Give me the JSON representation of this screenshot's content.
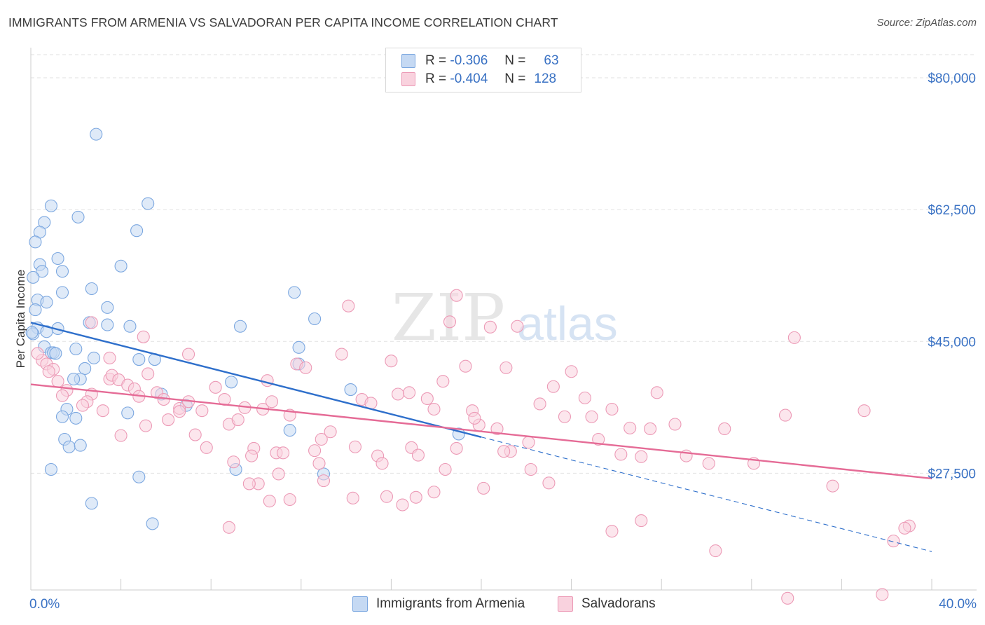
{
  "header": {
    "title": "IMMIGRANTS FROM ARMENIA VS SALVADORAN PER CAPITA INCOME CORRELATION CHART",
    "source": "Source: ZipAtlas.com"
  },
  "watermark": {
    "zip": "ZIP",
    "atlas": "atlas"
  },
  "legend": {
    "rows": [
      {
        "r_label": "R =",
        "r_value": "-0.306",
        "n_label": "N =",
        "n_value": "63"
      },
      {
        "r_label": "R =",
        "r_value": "-0.404",
        "n_label": "N =",
        "n_value": "128"
      }
    ]
  },
  "chart_data": {
    "type": "scatter",
    "ylabel": "Per Capita Income",
    "xlim": [
      0,
      40
    ],
    "ylim": [
      12000,
      84000
    ],
    "x_tick_labels": {
      "left": "0.0%",
      "right": "40.0%"
    },
    "y_ticks": [
      {
        "value": 80000,
        "label": "$80,000"
      },
      {
        "value": 62500,
        "label": "$62,500"
      },
      {
        "value": 45000,
        "label": "$45,000"
      },
      {
        "value": 27500,
        "label": "$27,500"
      }
    ],
    "grid": "horizontal-dashed",
    "series": [
      {
        "name": "Immigrants from Armenia",
        "color": "#7ba7e0",
        "fill": "#c5d9f3",
        "line_color": "#2e6fcb",
        "trend": {
          "x0": 0.0,
          "y0": 47500,
          "x1": 20.0,
          "y1": 32300,
          "dash_to_x": 40.0,
          "dash_to_y": 17100
        },
        "points": [
          [
            2.9,
            72500
          ],
          [
            0.9,
            63000
          ],
          [
            0.6,
            60800
          ],
          [
            2.1,
            61500
          ],
          [
            5.2,
            63300
          ],
          [
            4.7,
            59700
          ],
          [
            0.4,
            59500
          ],
          [
            0.2,
            58200
          ],
          [
            1.2,
            56000
          ],
          [
            0.4,
            55200
          ],
          [
            0.5,
            54300
          ],
          [
            1.4,
            54300
          ],
          [
            4.0,
            55000
          ],
          [
            0.1,
            53500
          ],
          [
            2.7,
            52000
          ],
          [
            1.4,
            51500
          ],
          [
            11.7,
            51500
          ],
          [
            0.3,
            50500
          ],
          [
            0.7,
            50200
          ],
          [
            3.4,
            49500
          ],
          [
            0.2,
            49200
          ],
          [
            12.6,
            48000
          ],
          [
            2.6,
            47500
          ],
          [
            3.4,
            47200
          ],
          [
            4.4,
            47000
          ],
          [
            9.3,
            47000
          ],
          [
            0.3,
            46800
          ],
          [
            1.2,
            46700
          ],
          [
            0.1,
            46000
          ],
          [
            0.7,
            46300
          ],
          [
            0.6,
            44300
          ],
          [
            2.0,
            44000
          ],
          [
            11.9,
            44200
          ],
          [
            0.9,
            43500
          ],
          [
            1.0,
            43500
          ],
          [
            1.1,
            43400
          ],
          [
            2.8,
            42800
          ],
          [
            4.8,
            42600
          ],
          [
            5.5,
            42600
          ],
          [
            11.9,
            42000
          ],
          [
            2.4,
            41400
          ],
          [
            2.2,
            40000
          ],
          [
            1.9,
            40000
          ],
          [
            8.9,
            39600
          ],
          [
            14.2,
            38600
          ],
          [
            5.8,
            38000
          ],
          [
            6.9,
            36500
          ],
          [
            1.6,
            36000
          ],
          [
            4.3,
            35500
          ],
          [
            1.4,
            35000
          ],
          [
            2.0,
            34800
          ],
          [
            11.5,
            33200
          ],
          [
            19.0,
            32700
          ],
          [
            1.5,
            32000
          ],
          [
            1.7,
            31000
          ],
          [
            2.2,
            31200
          ],
          [
            0.9,
            28000
          ],
          [
            9.1,
            28000
          ],
          [
            13.0,
            27400
          ],
          [
            4.8,
            27000
          ],
          [
            2.7,
            23500
          ],
          [
            5.4,
            20800
          ],
          [
            0.05,
            46200
          ]
        ]
      },
      {
        "name": "Salvadorans",
        "color": "#ec9ab6",
        "fill": "#f9d2de",
        "line_color": "#e56b96",
        "trend": {
          "x0": 0.0,
          "y0": 39300,
          "x1": 40.0,
          "y1": 26800
        },
        "points": [
          [
            0.5,
            42500
          ],
          [
            0.7,
            42000
          ],
          [
            1.0,
            41300
          ],
          [
            0.8,
            41000
          ],
          [
            1.2,
            39700
          ],
          [
            1.6,
            38500
          ],
          [
            1.4,
            37800
          ],
          [
            2.7,
            38000
          ],
          [
            2.5,
            37000
          ],
          [
            2.3,
            36500
          ],
          [
            3.2,
            35800
          ],
          [
            3.5,
            40000
          ],
          [
            3.6,
            40500
          ],
          [
            3.9,
            39900
          ],
          [
            4.3,
            39200
          ],
          [
            4.6,
            38700
          ],
          [
            4.8,
            37700
          ],
          [
            5.0,
            45600
          ],
          [
            5.2,
            40700
          ],
          [
            5.6,
            38200
          ],
          [
            5.9,
            37300
          ],
          [
            2.7,
            47500
          ],
          [
            3.5,
            42800
          ],
          [
            4.0,
            32500
          ],
          [
            5.1,
            33800
          ],
          [
            6.1,
            34600
          ],
          [
            6.6,
            36100
          ],
          [
            7.0,
            43300
          ],
          [
            7.0,
            37000
          ],
          [
            7.6,
            35800
          ],
          [
            7.3,
            32600
          ],
          [
            7.8,
            30900
          ],
          [
            8.2,
            38900
          ],
          [
            8.6,
            37300
          ],
          [
            8.8,
            34000
          ],
          [
            9.2,
            34600
          ],
          [
            9.5,
            36200
          ],
          [
            9.0,
            29000
          ],
          [
            9.9,
            30800
          ],
          [
            9.8,
            29800
          ],
          [
            10.3,
            36000
          ],
          [
            10.7,
            37000
          ],
          [
            10.5,
            39800
          ],
          [
            10.9,
            30200
          ],
          [
            11.2,
            30200
          ],
          [
            11.5,
            35200
          ],
          [
            11.8,
            42000
          ],
          [
            12.2,
            41500
          ],
          [
            12.6,
            30500
          ],
          [
            12.9,
            32000
          ],
          [
            13.3,
            33000
          ],
          [
            13.8,
            43300
          ],
          [
            14.1,
            49700
          ],
          [
            14.4,
            31000
          ],
          [
            14.7,
            37300
          ],
          [
            15.1,
            36800
          ],
          [
            15.4,
            29800
          ],
          [
            15.6,
            28800
          ],
          [
            16.0,
            42400
          ],
          [
            16.3,
            38000
          ],
          [
            16.9,
            30900
          ],
          [
            17.2,
            29900
          ],
          [
            17.6,
            37400
          ],
          [
            17.9,
            36000
          ],
          [
            18.3,
            39700
          ],
          [
            18.6,
            47600
          ],
          [
            18.9,
            51100
          ],
          [
            19.3,
            41700
          ],
          [
            19.6,
            35800
          ],
          [
            19.9,
            33900
          ],
          [
            20.4,
            46900
          ],
          [
            20.7,
            33400
          ],
          [
            21.1,
            41500
          ],
          [
            21.6,
            47000
          ],
          [
            22.1,
            31600
          ],
          [
            22.6,
            36700
          ],
          [
            23.2,
            39000
          ],
          [
            23.7,
            35000
          ],
          [
            24.0,
            41000
          ],
          [
            24.6,
            37500
          ],
          [
            24.9,
            35000
          ],
          [
            25.2,
            32000
          ],
          [
            25.8,
            36000
          ],
          [
            26.2,
            30000
          ],
          [
            26.6,
            33500
          ],
          [
            27.1,
            29700
          ],
          [
            27.5,
            33400
          ],
          [
            27.8,
            38200
          ],
          [
            28.6,
            34000
          ],
          [
            29.1,
            29800
          ],
          [
            30.1,
            28800
          ],
          [
            30.8,
            33400
          ],
          [
            32.1,
            28800
          ],
          [
            33.5,
            35200
          ],
          [
            33.9,
            45500
          ],
          [
            35.6,
            25800
          ],
          [
            37.0,
            35800
          ],
          [
            39.0,
            20500
          ],
          [
            38.3,
            18500
          ],
          [
            38.8,
            20200
          ],
          [
            37.8,
            11400
          ],
          [
            33.6,
            10900
          ],
          [
            30.4,
            17200
          ],
          [
            27.1,
            21200
          ],
          [
            25.8,
            19800
          ],
          [
            23.0,
            26200
          ],
          [
            22.2,
            28000
          ],
          [
            21.3,
            30400
          ],
          [
            20.1,
            25500
          ],
          [
            18.4,
            28000
          ],
          [
            17.9,
            25000
          ],
          [
            17.1,
            24300
          ],
          [
            16.5,
            23300
          ],
          [
            14.3,
            24200
          ],
          [
            13.0,
            26500
          ],
          [
            11.5,
            24000
          ],
          [
            10.6,
            23800
          ],
          [
            10.1,
            26100
          ],
          [
            8.8,
            20300
          ],
          [
            6.6,
            35700
          ],
          [
            9.7,
            26100
          ],
          [
            12.8,
            28800
          ],
          [
            15.8,
            24400
          ],
          [
            19.7,
            34800
          ],
          [
            21.0,
            30400
          ],
          [
            11.0,
            27400
          ],
          [
            16.8,
            38200
          ],
          [
            0.3,
            43400
          ],
          [
            18.9,
            30800
          ]
        ]
      }
    ]
  },
  "bottom_legend": {
    "items": [
      {
        "label": "Immigrants from Armenia",
        "color": "#c5d9f3",
        "border": "#7ba7e0"
      },
      {
        "label": "Salvadorans",
        "color": "#f9d2de",
        "border": "#ec9ab6"
      }
    ]
  }
}
